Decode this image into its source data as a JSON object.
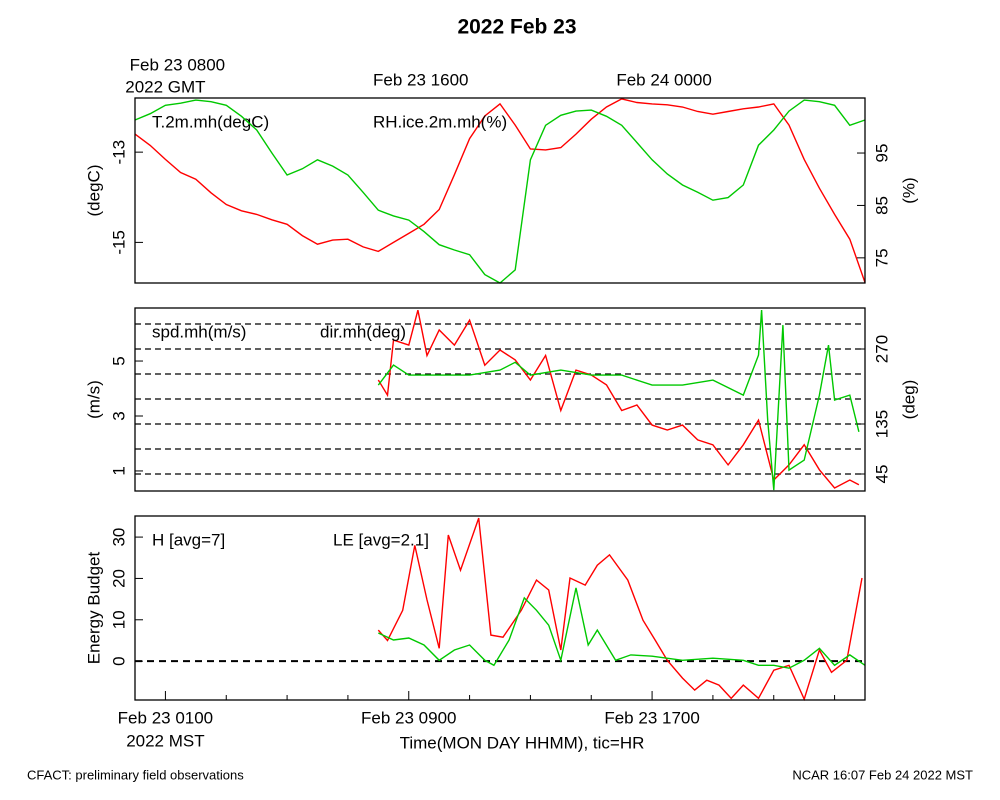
{
  "title": "2022 Feb 23",
  "footer_left": "CFACT: preliminary field observations",
  "footer_right": "NCAR 16:07 Feb 24 2022 MST",
  "chart_data": [
    {
      "type": "line",
      "xlim": [
        0,
        24
      ],
      "x2ticks": [
        {
          "value": 1,
          "label": "Feb 23 0800"
        },
        {
          "value": 9,
          "label": "Feb 23 1600"
        },
        {
          "value": 17,
          "label": "Feb 24 0000"
        }
      ],
      "x2_tick_sublabel": "2022 GMT",
      "ylabel": "(degC)",
      "ylim": [
        -15.9,
        -11.8
      ],
      "yticks": [
        -15,
        -13
      ],
      "y2label": "(%)",
      "y2lim": [
        70.2,
        105.5
      ],
      "y2ticks": [
        75,
        85,
        95
      ],
      "series": [
        {
          "name": "T.2m.mh(degC)",
          "color": "#ff0000",
          "x": [
            0,
            0.5,
            1,
            1.5,
            2,
            2.5,
            3,
            3.5,
            4,
            4.5,
            5,
            5.5,
            6,
            6.5,
            7,
            7.5,
            8,
            8.5,
            9,
            9.5,
            10,
            10.5,
            11,
            11.5,
            12,
            12.5,
            13,
            13.5,
            14,
            14.5,
            15,
            15.5,
            16,
            16.5,
            17,
            17.5,
            18,
            18.5,
            19,
            19.5,
            20,
            20.5,
            21,
            21.5,
            22,
            22.5,
            23,
            23.5,
            24
          ],
          "values": [
            -12.6,
            -12.85,
            -13.16,
            -13.45,
            -13.6,
            -13.9,
            -14.16,
            -14.3,
            -14.38,
            -14.5,
            -14.6,
            -14.85,
            -15.04,
            -14.95,
            -14.93,
            -15.1,
            -15.2,
            -15.0,
            -14.8,
            -14.6,
            -14.27,
            -13.5,
            -12.7,
            -12.2,
            -11.93,
            -12.4,
            -12.93,
            -12.95,
            -12.9,
            -12.6,
            -12.27,
            -12.0,
            -11.82,
            -11.9,
            -11.93,
            -11.95,
            -12.0,
            -12.1,
            -12.16,
            -12.1,
            -12.04,
            -12.0,
            -11.93,
            -12.4,
            -13.16,
            -13.8,
            -14.38,
            -14.93,
            -15.89
          ]
        },
        {
          "name": "RH.ice.2m.mh(%)",
          "color": "#00c800",
          "axis": "y2",
          "x": [
            0,
            0.5,
            1,
            1.5,
            2,
            2.5,
            3,
            3.5,
            4,
            4.5,
            5,
            5.5,
            6,
            6.5,
            7,
            7.5,
            8,
            8.5,
            9,
            9.5,
            10,
            10.5,
            11,
            11.5,
            12,
            12.5,
            13,
            13.5,
            14,
            14.5,
            15,
            15.5,
            16,
            16.5,
            17,
            17.5,
            18,
            18.5,
            19,
            19.5,
            20,
            20.5,
            21,
            21.5,
            22,
            22.5,
            23,
            23.5,
            24
          ],
          "values": [
            101.3,
            102.5,
            104.1,
            104.5,
            105.1,
            104.8,
            104.1,
            102.0,
            99.4,
            95.0,
            90.8,
            92.0,
            93.7,
            92.5,
            90.8,
            87.5,
            84.1,
            83.0,
            82.2,
            80.0,
            77.5,
            76.5,
            75.6,
            71.8,
            70.2,
            72.7,
            93.7,
            100.3,
            102.2,
            103.0,
            103.2,
            102.0,
            100.3,
            97.0,
            93.7,
            91.0,
            88.9,
            87.5,
            86.0,
            86.5,
            88.9,
            96.5,
            99.4,
            103.0,
            105.1,
            104.8,
            104.1,
            100.3,
            101.3
          ]
        }
      ]
    },
    {
      "type": "line",
      "xlim": [
        0,
        24
      ],
      "ylabel": "(m/s)",
      "ylim": [
        0.27,
        6.93
      ],
      "yticks": [
        1,
        3,
        5
      ],
      "y2label": "(deg)",
      "y2lim": [
        14.4,
        343.8
      ],
      "y2ticks": [
        45,
        135,
        270
      ],
      "y2grid": [
        45,
        90,
        135,
        180,
        225,
        270,
        315
      ],
      "series": [
        {
          "name": "spd.mh(m/s)",
          "color": "#ff0000",
          "x": [
            8,
            8.3,
            8.5,
            9,
            9.3,
            9.6,
            10,
            10.5,
            11,
            11.5,
            12,
            12.5,
            13,
            13.5,
            14,
            14.5,
            15,
            15.5,
            16,
            16.5,
            17,
            17.5,
            18,
            18.5,
            19,
            19.5,
            20,
            20.5,
            21,
            21.5,
            22,
            22.5,
            23,
            23.5,
            23.8
          ],
          "values": [
            4.31,
            3.76,
            5.76,
            5.58,
            6.85,
            5.2,
            6.13,
            5.58,
            6.49,
            4.85,
            5.4,
            5.04,
            4.31,
            5.2,
            3.2,
            4.67,
            4.49,
            4.13,
            3.2,
            3.4,
            2.67,
            2.49,
            2.67,
            2.13,
            1.95,
            1.22,
            1.95,
            2.85,
            0.67,
            1.22,
            1.95,
            1.04,
            0.38,
            0.67,
            0.5
          ]
        },
        {
          "name": "dir.mh(deg)",
          "color": "#00c800",
          "axis": "y2",
          "x": [
            8,
            8.5,
            9,
            10,
            11,
            12,
            12.5,
            13,
            14,
            15,
            16,
            17,
            18,
            19,
            20,
            20.5,
            20.6,
            20.8,
            21,
            21.3,
            21.5,
            22,
            22.5,
            22.8,
            23,
            23.5,
            23.8
          ],
          "values": [
            205,
            241,
            223,
            223,
            223,
            232,
            246,
            223,
            232,
            223,
            223,
            205,
            205,
            214,
            187,
            259,
            340,
            142,
            16,
            313,
            52,
            70,
            187,
            277,
            178,
            187,
            121
          ]
        }
      ]
    },
    {
      "type": "line",
      "xlim": [
        0,
        24
      ],
      "xticks": [
        {
          "value": 1,
          "label": "Feb 23 0100"
        },
        {
          "value": 9,
          "label": "Feb 23 0900"
        },
        {
          "value": 17,
          "label": "Feb 23 1700"
        }
      ],
      "xminor_ticks": [
        3,
        5,
        7,
        11,
        13,
        15,
        19,
        21,
        23
      ],
      "x_tick_sublabel": "2022 MST",
      "xlabel": "Time(MON DAY HHMM), tic=HR",
      "ylabel": "Energy Budget",
      "ylim": [
        -9.4,
        35.1
      ],
      "yticks": [
        0,
        10,
        20,
        30
      ],
      "ref_lines": [
        0
      ],
      "series": [
        {
          "name": "H [avg=7]",
          "color": "#ff0000",
          "x": [
            8,
            8.3,
            8.8,
            9.2,
            9.6,
            10,
            10.3,
            10.7,
            11.3,
            11.7,
            12.1,
            12.7,
            13.2,
            13.6,
            14,
            14.3,
            14.8,
            15.2,
            15.6,
            16.2,
            16.7,
            17.1,
            17.5,
            18,
            18.4,
            18.8,
            19.2,
            19.6,
            20,
            20.5,
            21,
            21.5,
            22,
            22.5,
            22.9,
            23.4,
            23.9
          ],
          "values": [
            7.5,
            5,
            12.3,
            28,
            14.8,
            3.1,
            30.5,
            22,
            34.6,
            6.3,
            5.8,
            12.3,
            19.6,
            17.2,
            2.7,
            20.1,
            18.4,
            23.2,
            25.7,
            19.6,
            9.9,
            5.1,
            0.2,
            -4.1,
            -7,
            -4.6,
            -5.8,
            -9,
            -5.8,
            -9,
            -2.2,
            -1,
            -9.2,
            2.7,
            -2.7,
            0.2,
            20.1
          ]
        },
        {
          "name": "LE [avg=2.1]",
          "color": "#00c800",
          "x": [
            8,
            8.5,
            9,
            9.5,
            10,
            10.5,
            11,
            11.5,
            11.8,
            12.3,
            12.8,
            13.2,
            13.6,
            14,
            14.5,
            14.9,
            15.2,
            15.8,
            16.3,
            17,
            18,
            19,
            20,
            20.5,
            21,
            21.5,
            22,
            22.5,
            23,
            23.5,
            24
          ],
          "values": [
            6.8,
            5.1,
            5.6,
            3.9,
            0.2,
            2.7,
            3.9,
            0.2,
            -1,
            5.1,
            15.3,
            12.3,
            8.7,
            0.2,
            17.7,
            3.9,
            7.5,
            0.2,
            1.5,
            1.2,
            0.2,
            0.7,
            0.2,
            -1,
            -1,
            -1.7,
            0.2,
            3.1,
            -1,
            1.5,
            -1
          ]
        }
      ]
    }
  ]
}
